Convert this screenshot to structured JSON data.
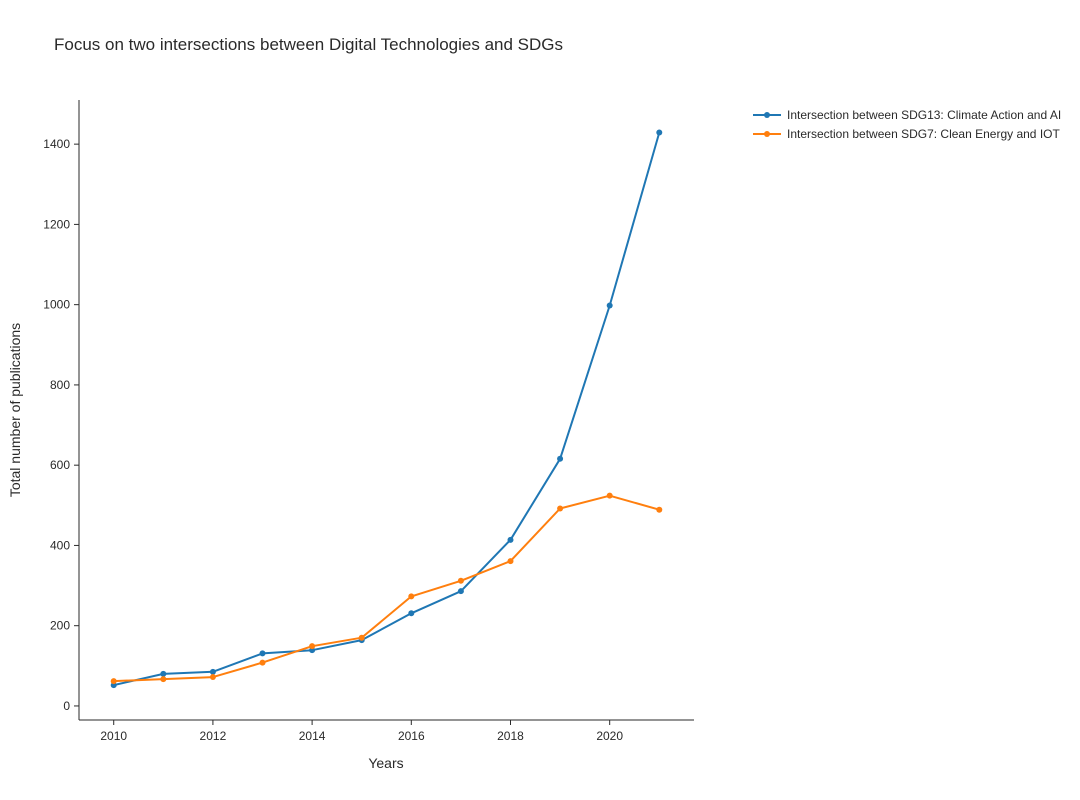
{
  "chart_data": {
    "type": "line",
    "title": "Focus on two intersections between Digital Technologies and SDGs",
    "xlabel": "Years",
    "ylabel": "Total number of publications",
    "x": [
      2010,
      2011,
      2012,
      2013,
      2014,
      2015,
      2016,
      2017,
      2018,
      2019,
      2020,
      2021
    ],
    "xlim": [
      2009.3,
      2021.7
    ],
    "ylim": [
      -35,
      1510
    ],
    "xticks": [
      2010,
      2012,
      2014,
      2016,
      2018,
      2020
    ],
    "yticks": [
      0,
      200,
      400,
      600,
      800,
      1000,
      1200,
      1400
    ],
    "grid": false,
    "legend_position": "top-right",
    "series": [
      {
        "name": "Intersection between SDG13: Climate Action and AI",
        "color": "#1f77b4",
        "values": [
          52,
          80,
          85,
          131,
          139,
          164,
          231,
          286,
          414,
          616,
          998,
          1429
        ]
      },
      {
        "name": "Intersection between SDG7: Clean Energy and IOT",
        "color": "#ff7f0e",
        "values": [
          62,
          67,
          72,
          108,
          149,
          170,
          273,
          312,
          361,
          492,
          524,
          489
        ]
      }
    ]
  }
}
